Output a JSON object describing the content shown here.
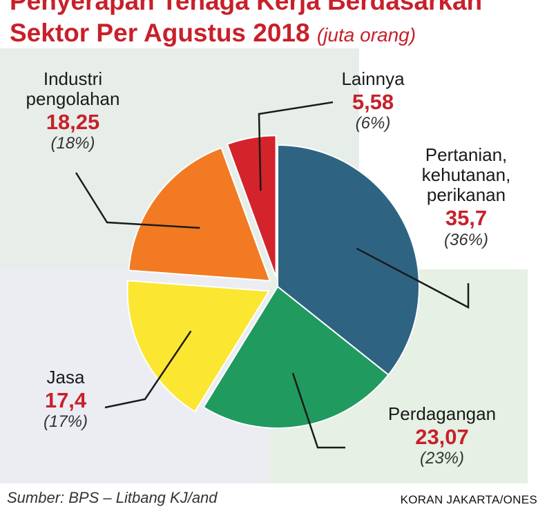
{
  "title": {
    "line1": "Penyerapan Tenaga Kerja Berdasarkan",
    "line2": "Sektor Per Agustus 2018",
    "unit": "(juta orang)"
  },
  "background": {
    "left_color": "#e7eeea",
    "right_color": "#e6f0e4",
    "bottom_left_color": "#ecedf2"
  },
  "chart_data": {
    "type": "pie",
    "unit": "juta orang",
    "slices": [
      {
        "name_lines": [
          "Pertanian,",
          "kehutanan,",
          "perikanan"
        ],
        "value": 35.7,
        "value_label": "35,7",
        "pct_label": "(36%)",
        "color": "#2e6482",
        "exploded": false
      },
      {
        "name_lines": [
          "Perdagangan"
        ],
        "value": 23.07,
        "value_label": "23,07",
        "pct_label": "(23%)",
        "color": "#219a5f",
        "exploded": false
      },
      {
        "name_lines": [
          "Jasa"
        ],
        "value": 17.4,
        "value_label": "17,4",
        "pct_label": "(17%)",
        "color": "#fbe632",
        "exploded": true
      },
      {
        "name_lines": [
          "Industri",
          "pengolahan"
        ],
        "value": 18.25,
        "value_label": "18,25",
        "pct_label": "(18%)",
        "color": "#f27a22",
        "exploded": true
      },
      {
        "name_lines": [
          "Lainnya"
        ],
        "value": 5.58,
        "value_label": "5,58",
        "pct_label": "(6%)",
        "color": "#d3232b",
        "exploded": true
      }
    ]
  },
  "footer": {
    "source": "Sumber: BPS – Litbang KJ/and",
    "credit": "KORAN JAKARTA/ONES"
  }
}
